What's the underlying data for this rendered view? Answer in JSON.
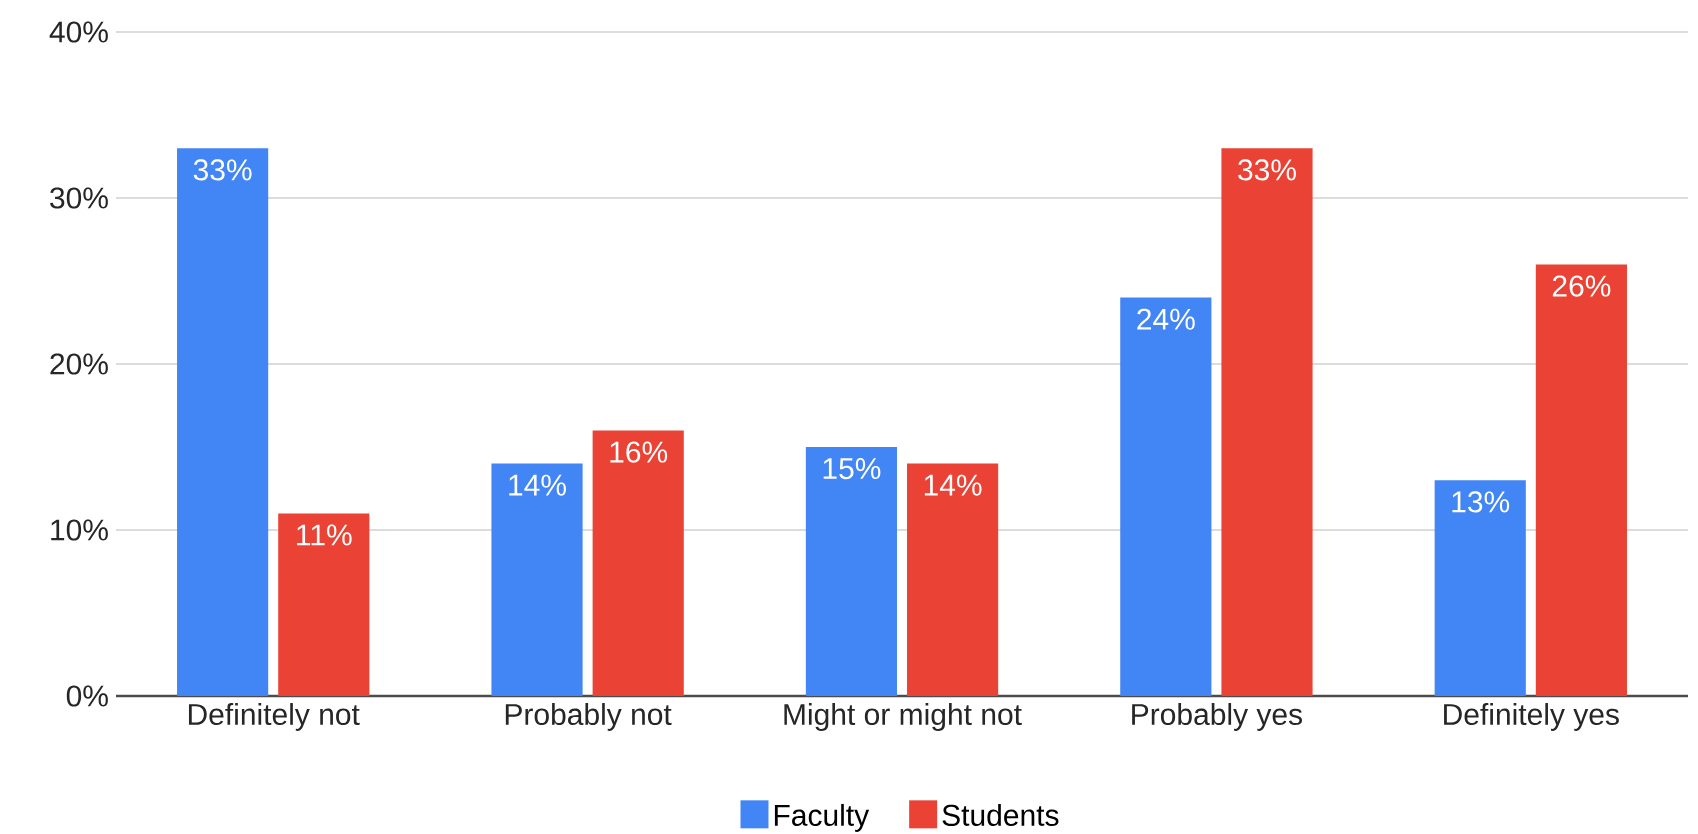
{
  "chart_data": {
    "type": "bar",
    "categories": [
      "Definitely not",
      "Probably not",
      "Might or might not",
      "Probably yes",
      "Definitely yes"
    ],
    "series": [
      {
        "name": "Faculty",
        "color": "#4285f4",
        "values": [
          33,
          14,
          15,
          24,
          13
        ],
        "value_labels": [
          "33%",
          "14%",
          "15%",
          "24%",
          "13%"
        ]
      },
      {
        "name": "Students",
        "color": "#ea4335",
        "values": [
          11,
          16,
          14,
          33,
          26
        ],
        "value_labels": [
          "11%",
          "16%",
          "14%",
          "33%",
          "26%"
        ]
      }
    ],
    "ylim": [
      0,
      40
    ],
    "yticks": [
      {
        "value": 0,
        "label": "0%"
      },
      {
        "value": 10,
        "label": "10%"
      },
      {
        "value": 20,
        "label": "20%"
      },
      {
        "value": 30,
        "label": "30%"
      },
      {
        "value": 40,
        "label": "40%"
      }
    ],
    "grid": "y",
    "legend": "bottom"
  }
}
